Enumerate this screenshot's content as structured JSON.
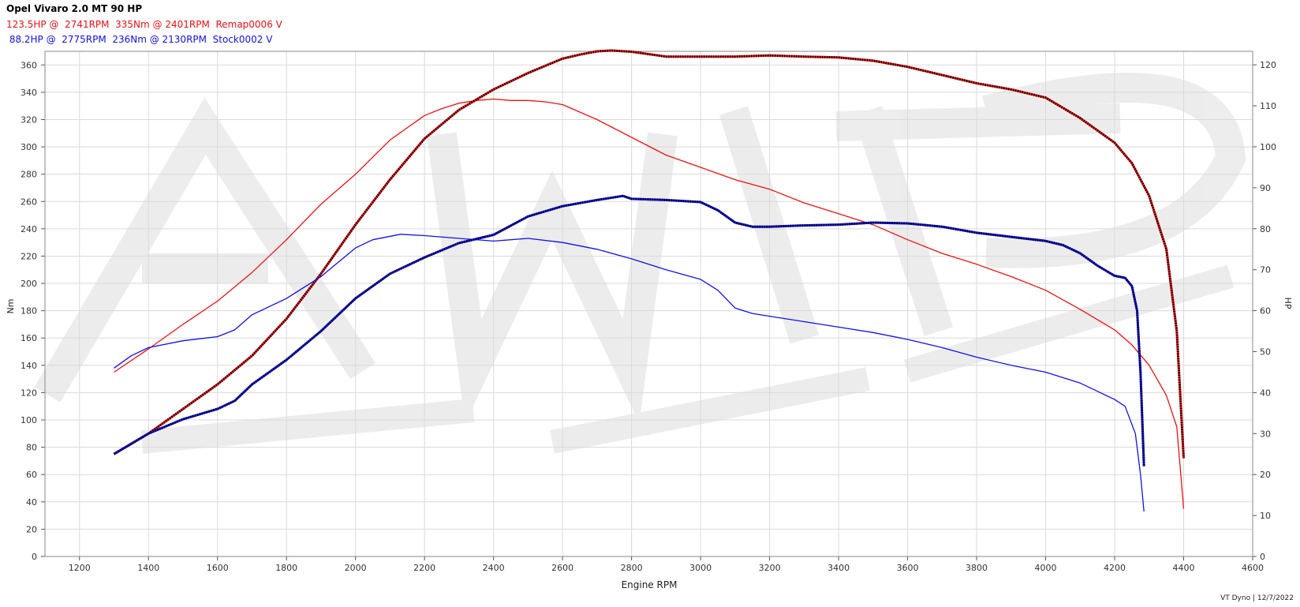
{
  "header": {
    "title": "Opel Vivaro 2.0 MT 90 HP",
    "remap_line": "123.5HP @  2741RPM  335Nm @ 2401RPM  Remap0006 V",
    "stock_line": " 88.2HP @  2775RPM  236Nm @ 2130RPM  Stock0002 V"
  },
  "footer": "VT Dyno | 12/7/2022",
  "colors": {
    "remap": "#ee1111",
    "stock": "#1111ee",
    "power_dots": "#000000"
  },
  "chart_data": {
    "type": "line",
    "xlabel": "Engine RPM",
    "ylabel": "Nm",
    "y2label": "HP",
    "xlim": [
      1100,
      4600
    ],
    "ylim": [
      0,
      370
    ],
    "y2lim": [
      0,
      123.3
    ],
    "x_ticks": [
      1200,
      1400,
      1600,
      1800,
      2000,
      2200,
      2400,
      2600,
      2800,
      3000,
      3200,
      3400,
      3600,
      3800,
      4000,
      4200,
      4400,
      4600
    ],
    "y_ticks": [
      0,
      20,
      40,
      60,
      80,
      100,
      120,
      140,
      160,
      180,
      200,
      220,
      240,
      260,
      280,
      300,
      320,
      340,
      360
    ],
    "y2_ticks": [
      0,
      10,
      20,
      30,
      40,
      50,
      60,
      70,
      80,
      90,
      100,
      110,
      120
    ],
    "grid": true,
    "series": [
      {
        "name": "Remap0006",
        "quantity": "torque",
        "axis": "left",
        "color": "#ee1111",
        "style": "solid",
        "x": [
          1300,
          1400,
          1500,
          1600,
          1700,
          1800,
          1900,
          2000,
          2100,
          2200,
          2250,
          2300,
          2350,
          2401,
          2450,
          2500,
          2550,
          2600,
          2700,
          2800,
          2900,
          3000,
          3100,
          3200,
          3300,
          3400,
          3500,
          3600,
          3700,
          3800,
          3900,
          4000,
          4100,
          4200,
          4250,
          4300,
          4350,
          4380,
          4400
        ],
        "y": [
          135,
          152,
          170,
          187,
          208,
          232,
          258,
          280,
          305,
          323,
          328,
          332,
          334,
          335,
          334,
          334,
          333,
          331,
          320,
          307,
          294,
          285,
          276,
          269,
          259,
          251,
          243,
          232,
          222,
          214,
          205,
          195,
          181,
          166,
          155,
          140,
          118,
          95,
          35
        ]
      },
      {
        "name": "Remap0006",
        "quantity": "power",
        "axis": "right",
        "color": "#ee1111",
        "style": "dotted",
        "x": [
          1300,
          1400,
          1500,
          1600,
          1700,
          1800,
          1900,
          2000,
          2100,
          2200,
          2300,
          2400,
          2500,
          2600,
          2650,
          2700,
          2741,
          2800,
          2900,
          3000,
          3100,
          3200,
          3300,
          3400,
          3500,
          3600,
          3700,
          3800,
          3900,
          4000,
          4100,
          4200,
          4250,
          4300,
          4350,
          4380,
          4400
        ],
        "y": [
          25,
          30,
          36,
          42,
          49,
          58,
          69,
          81,
          92,
          102,
          109,
          114,
          118,
          121.5,
          122.5,
          123.3,
          123.5,
          123.2,
          122,
          122,
          122,
          122.3,
          122,
          121.8,
          121,
          119.5,
          117.5,
          115.5,
          114,
          112,
          107,
          101,
          96,
          88,
          75,
          55,
          24
        ]
      },
      {
        "name": "Stock0002",
        "quantity": "torque",
        "axis": "left",
        "color": "#1111ee",
        "style": "solid",
        "x": [
          1300,
          1350,
          1400,
          1500,
          1600,
          1650,
          1700,
          1800,
          1900,
          2000,
          2050,
          2130,
          2200,
          2300,
          2400,
          2500,
          2600,
          2700,
          2800,
          2900,
          3000,
          3050,
          3100,
          3150,
          3200,
          3300,
          3400,
          3500,
          3600,
          3700,
          3800,
          3900,
          4000,
          4100,
          4200,
          4230,
          4260,
          4275,
          4285
        ],
        "y": [
          138,
          147,
          153,
          158,
          161,
          166,
          177,
          189,
          205,
          226,
          232,
          236,
          235,
          233,
          231,
          233,
          230,
          225,
          218,
          210,
          203,
          195,
          182,
          178,
          176,
          172,
          168,
          164,
          159,
          153,
          146,
          140,
          135,
          127,
          115,
          110,
          90,
          60,
          33
        ]
      },
      {
        "name": "Stock0002",
        "quantity": "power",
        "axis": "right",
        "color": "#1111ee",
        "style": "dotted",
        "x": [
          1300,
          1400,
          1500,
          1600,
          1650,
          1700,
          1800,
          1900,
          2000,
          2100,
          2200,
          2300,
          2400,
          2500,
          2600,
          2700,
          2775,
          2800,
          2900,
          3000,
          3050,
          3100,
          3150,
          3200,
          3300,
          3400,
          3500,
          3600,
          3700,
          3800,
          3900,
          4000,
          4050,
          4100,
          4150,
          4200,
          4230,
          4250,
          4265,
          4275,
          4285
        ],
        "y": [
          25,
          30,
          33.5,
          36,
          38,
          42,
          48,
          55,
          63,
          69,
          73,
          76.5,
          78.5,
          83,
          85.5,
          87,
          88,
          87.3,
          87,
          86.5,
          84.5,
          81.5,
          80.5,
          80.5,
          80.8,
          81,
          81.5,
          81.3,
          80.5,
          79,
          78,
          77,
          76,
          74,
          71,
          68.5,
          68,
          66,
          60,
          45,
          22
        ]
      }
    ]
  }
}
